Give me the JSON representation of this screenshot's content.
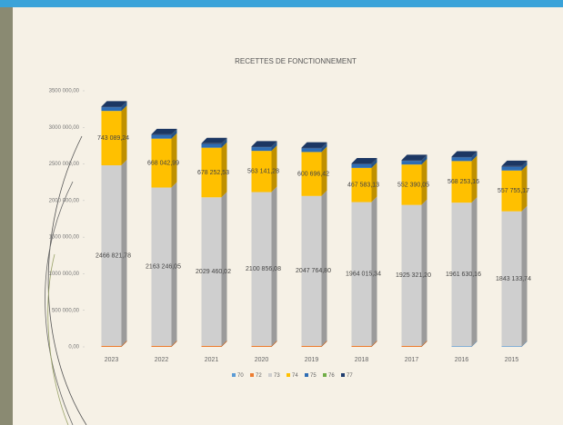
{
  "chart_data": {
    "type": "bar3d",
    "stacked": true,
    "title": "RECETTES DE FONCTIONNEMENT",
    "categories": [
      "2023",
      "2022",
      "2021",
      "2020",
      "2019",
      "2018",
      "2017",
      "2016",
      "2015"
    ],
    "series": [
      {
        "name": "70",
        "color": "#5b9bd5",
        "values": [
          0,
          0,
          0,
          0,
          0,
          0,
          0,
          10000,
          10000
        ]
      },
      {
        "name": "72",
        "color": "#ed7d31",
        "values": [
          15000,
          15000,
          15000,
          15000,
          15000,
          15000,
          15000,
          0,
          0
        ]
      },
      {
        "name": "73",
        "color": "#cfcfcf",
        "values": [
          2466821.78,
          2163246.05,
          2029460.02,
          2100856.08,
          2047764.8,
          1964015.34,
          1925321.2,
          1961630.16,
          1843133.74
        ],
        "value_labels": [
          "2466 821,78",
          "2163 246,05",
          "2029 460,02",
          "2100 856,08",
          "2047 764,80",
          "1964 015,34",
          "1925 321,20",
          "1961 630,16",
          "1843 133,74"
        ]
      },
      {
        "name": "74",
        "color": "#ffc000",
        "values": [
          743089.24,
          668042.99,
          678252.53,
          563141.28,
          600696.42,
          467583.13,
          552390.05,
          568253.16,
          557755.17
        ],
        "value_labels": [
          "743 089,24",
          "668 042,99",
          "678 252,53",
          "563 141,28",
          "600 696,42",
          "467 583,13",
          "552 390,05",
          "568 253,16",
          "557 755,17"
        ]
      },
      {
        "name": "75",
        "color": "#2e6db4",
        "values": [
          50000,
          50000,
          50000,
          50000,
          50000,
          50000,
          50000,
          50000,
          50000
        ]
      },
      {
        "name": "76",
        "color": "#70ad47",
        "values": [
          0,
          0,
          0,
          0,
          0,
          0,
          0,
          0,
          0
        ]
      },
      {
        "name": "77",
        "color": "#1f3d6e",
        "values": [
          10000,
          10000,
          10000,
          10000,
          10000,
          10000,
          10000,
          10000,
          10000
        ]
      }
    ],
    "ylim": [
      0,
      3500000
    ],
    "yticks": [
      {
        "value": 0,
        "label": "0,00"
      },
      {
        "value": 500000,
        "label": "500 000,00"
      },
      {
        "value": 1000000,
        "label": "1000 000,00"
      },
      {
        "value": 1500000,
        "label": "1500 000,00"
      },
      {
        "value": 2000000,
        "label": "2000 000,00"
      },
      {
        "value": 2500000,
        "label": "2500 000,00"
      },
      {
        "value": 3000000,
        "label": "3000 000,00"
      },
      {
        "value": 3500000,
        "label": "3500 000,00"
      }
    ],
    "grid": false,
    "legend": "bottom"
  }
}
